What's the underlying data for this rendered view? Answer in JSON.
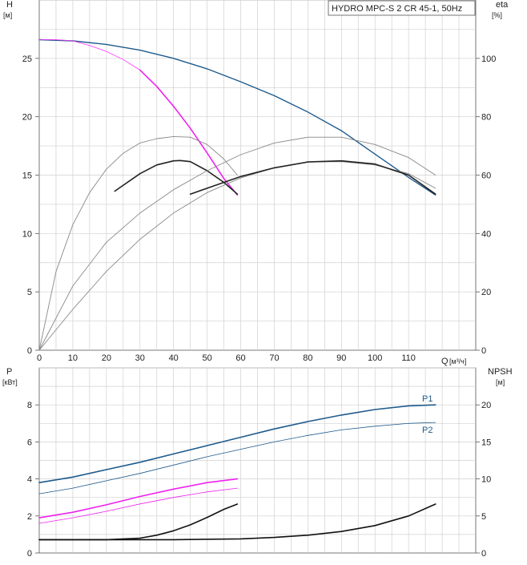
{
  "chart_data": [
    {
      "type": "line",
      "title": "HYDRO MPC-S 2 CR 45-1, 50Hz",
      "ylabel": "H",
      "yunit": "[м]",
      "y2label": "eta",
      "y2unit": "[%]",
      "xlabel": "Q",
      "xunit": "[м³/ч]",
      "xlim": [
        0,
        130
      ],
      "ylim": [
        0,
        30
      ],
      "y2lim": [
        0,
        120
      ],
      "xticks": [
        "0",
        "10",
        "20",
        "30",
        "40",
        "50",
        "60",
        "70",
        "80",
        "90",
        "100",
        "110"
      ],
      "yticks": [
        "0",
        "5",
        "10",
        "15",
        "20",
        "25"
      ],
      "y2ticks": [
        "0",
        "20",
        "40",
        "60",
        "80",
        "100"
      ],
      "grid": true,
      "series": [
        {
          "axis": "left",
          "color": "#1f5a8c",
          "width": 1.4,
          "x": [
            0,
            10,
            20,
            30,
            40,
            50,
            60,
            70,
            80,
            90,
            100,
            110,
            118
          ],
          "y": [
            26.6,
            26.5,
            26.2,
            25.7,
            25.0,
            24.1,
            23.0,
            21.8,
            20.4,
            18.8,
            16.8,
            14.8,
            13.3
          ]
        },
        {
          "axis": "left",
          "color": "#ff33ff",
          "width": 0.8,
          "x": [
            0,
            5,
            10,
            15,
            20,
            25,
            30
          ],
          "y": [
            26.6,
            26.6,
            26.5,
            26.1,
            25.6,
            24.9,
            24.0
          ]
        },
        {
          "axis": "left",
          "color": "#ee22ee",
          "width": 1.6,
          "x": [
            30,
            35,
            40,
            45,
            50,
            55,
            59
          ],
          "y": [
            24.0,
            22.6,
            20.9,
            19.0,
            16.9,
            14.7,
            13.3
          ]
        },
        {
          "axis": "right",
          "color": "#888888",
          "width": 0.9,
          "x": [
            0,
            5,
            10,
            15,
            20,
            25,
            30,
            35,
            40,
            45,
            50,
            55,
            59
          ],
          "y": [
            0,
            27,
            43,
            54,
            62,
            67.5,
            71,
            72.5,
            73.2,
            73,
            70.5,
            65.5,
            60
          ]
        },
        {
          "axis": "right",
          "color": "#222222",
          "width": 1.6,
          "x": [
            22.5,
            30,
            35,
            40,
            42,
            45,
            50,
            55,
            59
          ],
          "y": [
            54.5,
            60.5,
            63.5,
            64.9,
            65.0,
            64.6,
            61.5,
            57.5,
            53.5
          ]
        },
        {
          "axis": "right",
          "color": "#888888",
          "width": 0.9,
          "x": [
            0,
            10,
            20,
            30,
            40,
            50,
            60,
            70,
            80,
            90,
            100,
            110,
            118
          ],
          "y": [
            0,
            22,
            37,
            47,
            55,
            61.5,
            67,
            71,
            73,
            73,
            70.5,
            66,
            60
          ]
        },
        {
          "axis": "right",
          "color": "#888888",
          "width": 0.9,
          "x": [
            0,
            10,
            20,
            30,
            40,
            50,
            60,
            70,
            80,
            90,
            100,
            110,
            118
          ],
          "y": [
            0,
            14,
            27,
            38,
            47,
            54,
            59,
            62.5,
            64.5,
            64.6,
            63.5,
            60.5,
            55.5
          ]
        },
        {
          "axis": "right",
          "color": "#222222",
          "width": 1.6,
          "x": [
            45,
            50,
            60,
            70,
            80,
            90,
            100,
            110,
            118
          ],
          "y": [
            53.5,
            55.5,
            59.5,
            62.5,
            64.5,
            64.9,
            63.8,
            60,
            53.5
          ]
        }
      ]
    },
    {
      "type": "line",
      "ylabel": "P",
      "yunit": "[кВт]",
      "y2label": "NPSH",
      "y2unit": "[м]",
      "xlim": [
        0,
        130
      ],
      "ylim": [
        0,
        10
      ],
      "y2lim": [
        0,
        25
      ],
      "yticks": [
        "0",
        "2",
        "4",
        "6",
        "8"
      ],
      "y2ticks": [
        "0",
        "5",
        "10",
        "15",
        "20"
      ],
      "grid": true,
      "labels": [
        "P1",
        "P2"
      ],
      "series": [
        {
          "name": "P1",
          "axis": "left",
          "color": "#1f5a8c",
          "width": 1.6,
          "x": [
            0,
            10,
            20,
            30,
            40,
            50,
            60,
            70,
            80,
            90,
            100,
            110,
            118
          ],
          "y": [
            3.8,
            4.1,
            4.5,
            4.9,
            5.35,
            5.8,
            6.25,
            6.7,
            7.1,
            7.45,
            7.75,
            7.95,
            8.0
          ]
        },
        {
          "name": "P2",
          "axis": "left",
          "color": "#1f5a8c",
          "width": 0.8,
          "x": [
            0,
            10,
            20,
            30,
            40,
            50,
            60,
            70,
            80,
            90,
            100,
            110,
            118
          ],
          "y": [
            3.2,
            3.5,
            3.9,
            4.3,
            4.75,
            5.2,
            5.6,
            6.0,
            6.35,
            6.65,
            6.85,
            7.0,
            7.05
          ]
        },
        {
          "axis": "left",
          "color": "#ee22ee",
          "width": 1.6,
          "x": [
            0,
            10,
            20,
            30,
            40,
            50,
            59
          ],
          "y": [
            1.9,
            2.2,
            2.6,
            3.05,
            3.45,
            3.8,
            4.0
          ]
        },
        {
          "axis": "left",
          "color": "#ee22ee",
          "width": 0.8,
          "x": [
            0,
            10,
            20,
            30,
            40,
            50,
            59
          ],
          "y": [
            1.6,
            1.9,
            2.25,
            2.65,
            3.0,
            3.3,
            3.5
          ]
        },
        {
          "axis": "right",
          "color": "#111111",
          "width": 1.6,
          "x": [
            0,
            10,
            20,
            30,
            35,
            40,
            45,
            50,
            55,
            59
          ],
          "y": [
            1.8,
            1.8,
            1.8,
            2.0,
            2.4,
            3.0,
            3.8,
            4.8,
            5.9,
            6.6
          ]
        },
        {
          "axis": "right",
          "color": "#111111",
          "width": 1.6,
          "x": [
            0,
            20,
            40,
            60,
            70,
            80,
            90,
            100,
            110,
            118
          ],
          "y": [
            1.8,
            1.8,
            1.8,
            1.9,
            2.1,
            2.4,
            2.9,
            3.7,
            5.0,
            6.6
          ]
        }
      ]
    }
  ]
}
